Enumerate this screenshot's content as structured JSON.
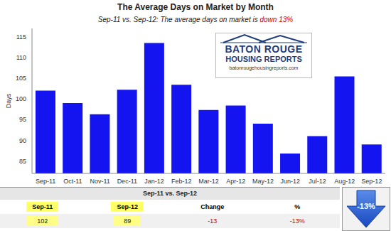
{
  "chart_data": {
    "type": "bar",
    "title": "The Average Days on Market by Month",
    "subtitle": [
      {
        "text": "Sep-11 vs. Sep-12: The average days on market is ",
        "color": "#222222"
      },
      {
        "text": "down 13%",
        "color": "#cc0000"
      }
    ],
    "y_label": "Days",
    "categories": [
      "Sep-11",
      "Oct-11",
      "Nov-11",
      "Dec-11",
      "Jan-12",
      "Feb-12",
      "Mar-12",
      "Apr-12",
      "May-12",
      "Jun-12",
      "Jul-12",
      "Aug-12",
      "Sep-12"
    ],
    "values": [
      102,
      99,
      96.3,
      102.2,
      113.5,
      103.4,
      97.3,
      98.4,
      94,
      86.8,
      91,
      105.4,
      89
    ],
    "color": "#1414f0",
    "ylim": [
      82,
      117
    ],
    "yticks": [
      85,
      90,
      95,
      100,
      105,
      110,
      115
    ],
    "grid": false
  },
  "logo": {
    "name_lines": [
      "BATON ROUGE",
      "HOUSING REPORTS"
    ],
    "url": "batonrougehousingreports.com"
  },
  "table": {
    "title": "Sep-11 vs. Sep-12",
    "header": [
      "Sep-11",
      "Sep-12",
      "Change",
      "%"
    ],
    "row": [
      "102",
      "89",
      "-13",
      "-13%"
    ]
  },
  "summary": "-13%"
}
